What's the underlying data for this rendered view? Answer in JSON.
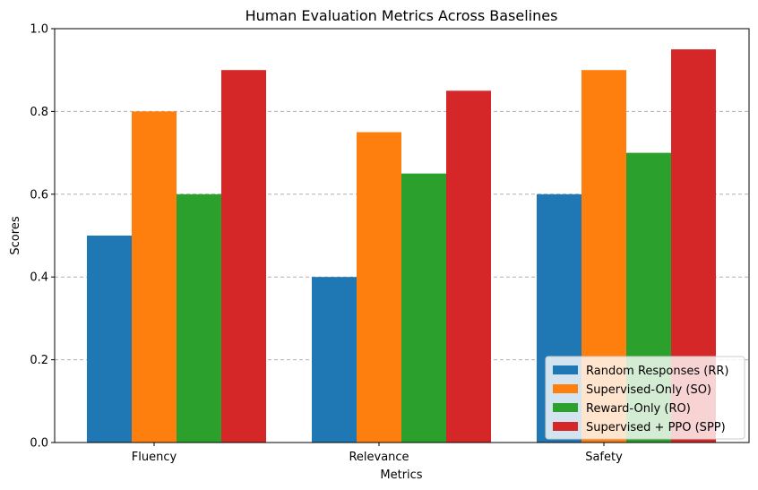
{
  "chart_data": {
    "type": "bar",
    "title": "Human Evaluation Metrics Across Baselines",
    "xlabel": "Metrics",
    "ylabel": "Scores",
    "ylim": [
      0,
      1.0
    ],
    "yticks": [
      "0.0",
      "0.2",
      "0.4",
      "0.6",
      "0.8",
      "1.0"
    ],
    "categories": [
      "Fluency",
      "Relevance",
      "Safety"
    ],
    "grid": "y-dashed",
    "legend_position": "lower right",
    "series": [
      {
        "name": "Random Responses (RR)",
        "color": "#1f77b4",
        "values": [
          0.5,
          0.4,
          0.6
        ]
      },
      {
        "name": "Supervised-Only (SO)",
        "color": "#ff7f0e",
        "values": [
          0.8,
          0.75,
          0.9
        ]
      },
      {
        "name": "Reward-Only (RO)",
        "color": "#2ca02c",
        "values": [
          0.6,
          0.65,
          0.7
        ]
      },
      {
        "name": "Supervised + PPO (SPP)",
        "color": "#d62728",
        "values": [
          0.9,
          0.85,
          0.95
        ]
      }
    ]
  }
}
